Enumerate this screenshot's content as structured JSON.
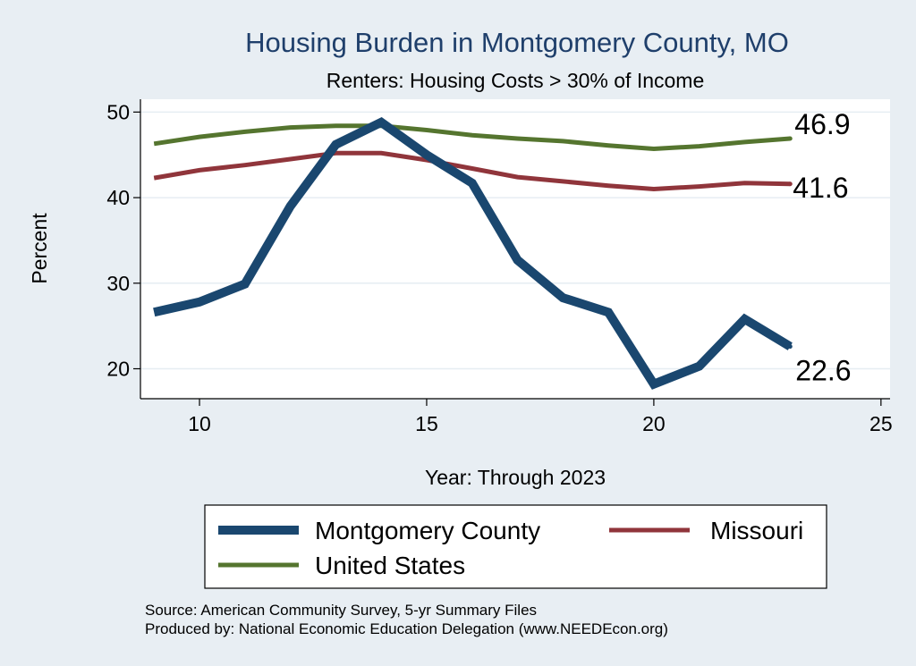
{
  "chart_data": {
    "type": "line",
    "title": "Housing Burden in Montgomery County, MO",
    "subtitle": "Renters: Housing Costs > 30% of Income",
    "xlabel": "Year: Through 2023",
    "ylabel": "Percent",
    "xlim": [
      8.7,
      25.2
    ],
    "ylim": [
      16.5,
      51.5
    ],
    "xticks": [
      10,
      15,
      20,
      25
    ],
    "yticks": [
      20,
      30,
      40,
      50
    ],
    "grid": true,
    "x": [
      9,
      10,
      11,
      12,
      13,
      14,
      15,
      16,
      17,
      18,
      19,
      20,
      21,
      22,
      23
    ],
    "series": [
      {
        "name": "Montgomery County",
        "color": "#1a476f",
        "values": [
          26.6,
          27.8,
          29.9,
          39.0,
          46.2,
          48.8,
          45.0,
          41.7,
          32.7,
          28.3,
          26.6,
          18.2,
          20.3,
          25.8,
          22.6
        ],
        "end_label": "22.6"
      },
      {
        "name": "Missouri",
        "color": "#90353b",
        "values": [
          42.3,
          43.2,
          43.8,
          44.5,
          45.2,
          45.2,
          44.4,
          43.4,
          42.4,
          41.9,
          41.4,
          41.0,
          41.3,
          41.7,
          41.6
        ],
        "end_label": "41.6"
      },
      {
        "name": "United States",
        "color": "#55752f",
        "values": [
          46.3,
          47.1,
          47.7,
          48.2,
          48.4,
          48.4,
          47.9,
          47.3,
          46.9,
          46.6,
          46.1,
          45.7,
          46.0,
          46.5,
          46.9
        ],
        "end_label": "46.9"
      }
    ],
    "legend": {
      "placement": "bottom",
      "items": [
        "Montgomery County",
        "Missouri",
        "United States"
      ]
    }
  },
  "source_note": "Source: American Community Survey, 5-yr Summary Files",
  "produced_note": "Produced by: National Economic Education Delegation (www.NEEDEcon.org)"
}
